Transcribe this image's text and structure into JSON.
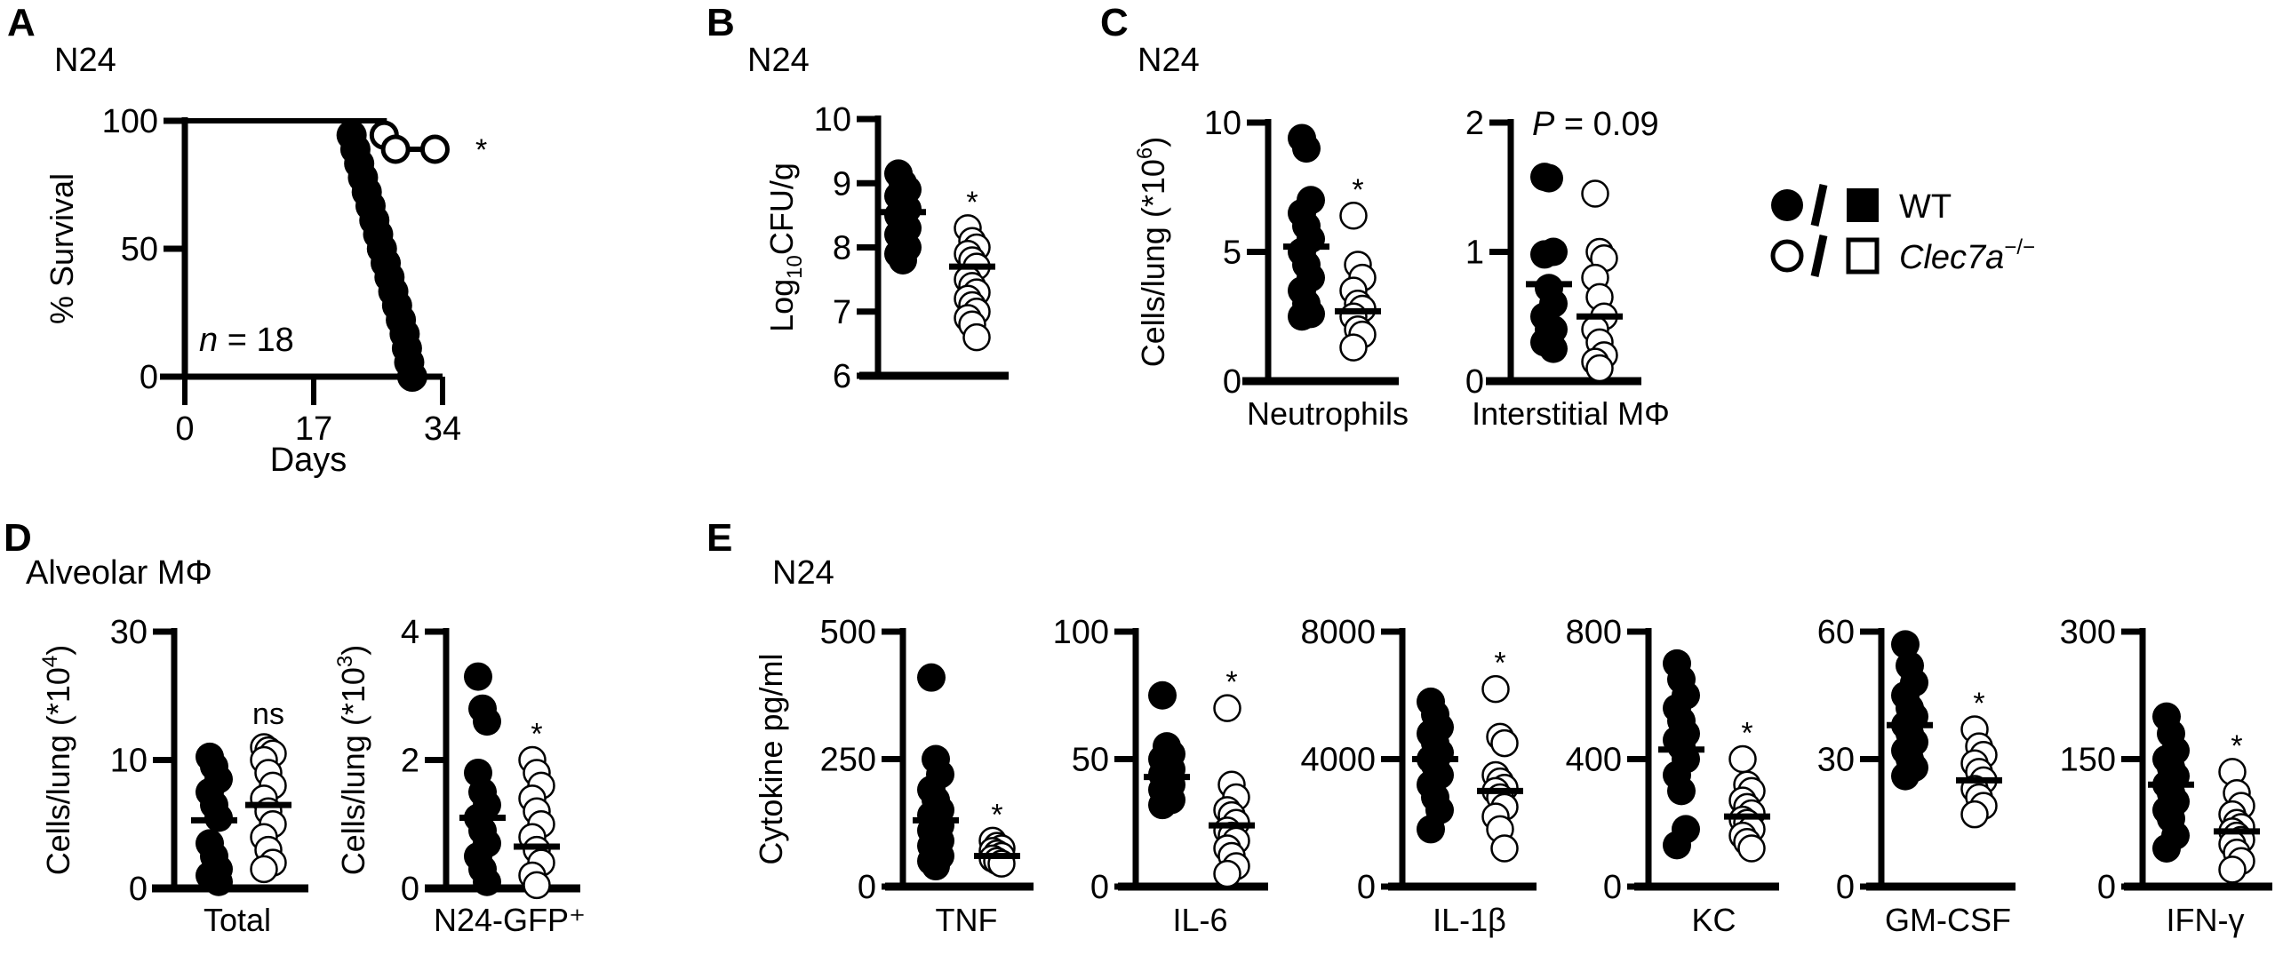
{
  "colors": {
    "wt": "#000000",
    "ko": "#ffffff",
    "stroke": "#000000"
  },
  "legend": {
    "wt_label": "WT",
    "ko_label": "Clec7a",
    "ko_superscript": "−/−",
    "wt_symbols": [
      "filled-circle",
      "filled-square"
    ],
    "ko_symbols": [
      "open-circle",
      "open-square"
    ]
  },
  "chart_data": [
    {
      "panel": "A",
      "type": "line",
      "subtitle": "N24",
      "ylabel": "% Survival",
      "xlabel": "Days",
      "xticks": [
        0,
        17,
        34
      ],
      "yticks": [
        0,
        50,
        100
      ],
      "xlim": [
        0,
        34
      ],
      "ylim": [
        0,
        100
      ],
      "note_italic": "n",
      "note_rest": " = 18",
      "annotation": "*",
      "series": [
        {
          "group": "wt",
          "points": [
            [
              0,
              100
            ],
            [
              22,
              94.4
            ],
            [
              22.5,
              88.9
            ],
            [
              23,
              83.3
            ],
            [
              23.5,
              77.8
            ],
            [
              24,
              72.2
            ],
            [
              24.5,
              66.7
            ],
            [
              25,
              61.1
            ],
            [
              25.5,
              55.6
            ],
            [
              26,
              50
            ],
            [
              26.5,
              44.4
            ],
            [
              27,
              38.9
            ],
            [
              27.5,
              33.3
            ],
            [
              28,
              27.8
            ],
            [
              28.5,
              22.2
            ],
            [
              29,
              16.7
            ],
            [
              29.3,
              11.1
            ],
            [
              29.6,
              5.6
            ],
            [
              30,
              0
            ]
          ]
        },
        {
          "group": "ko",
          "points": [
            [
              0,
              100
            ],
            [
              26.3,
              94.4
            ],
            [
              27.8,
              88.9
            ],
            [
              33,
              88.9
            ]
          ]
        }
      ]
    },
    {
      "panel": "B",
      "type": "scatter",
      "subtitle": "N24",
      "ylabel_parts": [
        "Log",
        "10",
        "CFU/g"
      ],
      "yticks": [
        6,
        7,
        8,
        9,
        10
      ],
      "category": "",
      "annotation": "*",
      "wt": [
        9.15,
        9.0,
        8.9,
        8.8,
        8.7,
        8.6,
        8.5,
        8.4,
        8.3,
        8.2,
        8.1,
        8.0,
        7.9,
        7.8
      ],
      "ko": [
        8.3,
        8.1,
        8.0,
        7.9,
        7.8,
        7.7,
        7.5,
        7.4,
        7.3,
        7.2,
        7.1,
        7.0,
        6.9,
        6.8,
        6.6
      ],
      "wt_mean": 8.55,
      "ko_mean": 7.7
    },
    {
      "panel": "C",
      "type": "scatter",
      "subtitle": "N24",
      "ylabel_parts": [
        "Cells/lung (*10",
        "6",
        ")"
      ],
      "yticks": [
        0,
        5,
        10
      ],
      "category": "Neutrophils",
      "annotation": "*",
      "wt": [
        9.4,
        9.0,
        7.0,
        6.5,
        6.0,
        5.5,
        5.0,
        4.5,
        4.0,
        3.5,
        3.0,
        2.6,
        2.5
      ],
      "ko": [
        6.4,
        4.5,
        4.0,
        3.5,
        3.0,
        2.8,
        2.5,
        2.0,
        1.8,
        1.3
      ],
      "wt_mean": 5.2,
      "ko_mean": 2.7
    },
    {
      "panel": "",
      "type": "scatter",
      "yticks": [
        0,
        1,
        2
      ],
      "category": "Interstitial MΦ",
      "annotation_italic": "P",
      "annotation": " = 0.09",
      "wt": [
        1.58,
        1.57,
        1.0,
        0.98,
        0.72,
        0.6,
        0.5,
        0.4,
        0.4,
        0.3,
        0.3,
        0.25
      ],
      "ko": [
        1.45,
        1.0,
        0.95,
        0.8,
        0.65,
        0.5,
        0.4,
        0.3,
        0.2,
        0.15,
        0.1
      ],
      "wt_mean": 0.75,
      "ko_mean": 0.5
    },
    {
      "panel": "D",
      "type": "scatter",
      "subtitle": "Alveolar MΦ",
      "ylabel_parts": [
        "Cells/lung (*10",
        "4",
        ")"
      ],
      "yticks": [
        0,
        10,
        30
      ],
      "category": "Total",
      "annotation": "ns",
      "wt": [
        10.5,
        9.5,
        8.5,
        7.5,
        6.5,
        5.5,
        3.5,
        2.5,
        1.5,
        1.0,
        0.8,
        0.5
      ],
      "ko": [
        12,
        11.5,
        11,
        10,
        9,
        8,
        7,
        6,
        5,
        4,
        3,
        2,
        1.5
      ],
      "wt_mean": 5.3,
      "ko_mean": 6.5
    },
    {
      "panel": "",
      "type": "scatter",
      "ylabel_parts": [
        "Cells/lung (*10",
        "3",
        ")"
      ],
      "yticks": [
        0,
        2,
        4
      ],
      "category": "N24-GFP⁺",
      "annotation": "*",
      "wt": [
        3.3,
        2.8,
        2.6,
        1.8,
        1.5,
        1.3,
        1.1,
        0.9,
        0.7,
        0.5,
        0.3,
        0.1
      ],
      "ko": [
        2.0,
        1.8,
        1.6,
        1.4,
        1.2,
        1.0,
        0.8,
        0.6,
        0.4,
        0.2,
        0.05
      ],
      "wt_mean": 1.1,
      "ko_mean": 0.65
    },
    {
      "panel": "E",
      "type": "scatter",
      "subtitle": "N24",
      "ylabel_parts": [
        "Cytokine pg/ml",
        "",
        ""
      ],
      "yticks": [
        0,
        250,
        500
      ],
      "category": "TNF",
      "annotation": "*",
      "wt": [
        410,
        250,
        220,
        190,
        170,
        150,
        140,
        130,
        120,
        110,
        100,
        90,
        80,
        70,
        60,
        50,
        40
      ],
      "ko": [
        90,
        80,
        75,
        70,
        65,
        60,
        55,
        50,
        45
      ],
      "wt_mean": 130,
      "ko_mean": 60
    },
    {
      "panel": "",
      "type": "scatter",
      "yticks": [
        0,
        50,
        100
      ],
      "category": "IL-6",
      "annotation": "*",
      "wt": [
        75,
        55,
        52,
        50,
        48,
        46,
        44,
        42,
        40,
        38,
        36,
        34,
        32
      ],
      "ko": [
        70,
        40,
        35,
        30,
        28,
        25,
        22,
        20,
        18,
        15,
        12,
        8,
        5
      ],
      "wt_mean": 43,
      "ko_mean": 24
    },
    {
      "panel": "",
      "type": "scatter",
      "yticks": [
        0,
        4000,
        8000
      ],
      "category": "IL-1β",
      "annotation": "*",
      "wt": [
        5800,
        5400,
        5000,
        4800,
        4500,
        4200,
        4000,
        3800,
        3500,
        3200,
        2800,
        2400,
        1800
      ],
      "ko": [
        6200,
        4700,
        4500,
        3500,
        3300,
        3100,
        3000,
        2800,
        2500,
        2200,
        1800,
        1200
      ],
      "wt_mean": 4000,
      "ko_mean": 3000
    },
    {
      "panel": "",
      "type": "scatter",
      "yticks": [
        0,
        400,
        800
      ],
      "category": "KC",
      "annotation": "*",
      "wt": [
        700,
        650,
        600,
        560,
        520,
        480,
        460,
        440,
        400,
        350,
        300,
        180,
        130
      ],
      "ko": [
        400,
        320,
        300,
        270,
        250,
        230,
        210,
        200,
        180,
        160,
        140,
        120
      ],
      "wt_mean": 430,
      "ko_mean": 220
    },
    {
      "panel": "",
      "type": "scatter",
      "yticks": [
        0,
        30,
        60
      ],
      "category": "GM-CSF",
      "annotation": "*",
      "wt": [
        57,
        52,
        48,
        45,
        42,
        40,
        38,
        36,
        34,
        32,
        30,
        28,
        26
      ],
      "ko": [
        37,
        33,
        31,
        29,
        27,
        25,
        23,
        21,
        19,
        17
      ],
      "wt_mean": 38,
      "ko_mean": 25
    },
    {
      "panel": "",
      "type": "scatter",
      "yticks": [
        0,
        150,
        300
      ],
      "category": "IFN-γ",
      "annotation": "*",
      "wt": [
        200,
        180,
        160,
        150,
        140,
        130,
        120,
        110,
        100,
        90,
        80,
        60,
        45
      ],
      "ko": [
        135,
        110,
        95,
        85,
        75,
        70,
        65,
        60,
        55,
        50,
        40,
        30,
        20
      ],
      "wt_mean": 120,
      "ko_mean": 65
    }
  ]
}
